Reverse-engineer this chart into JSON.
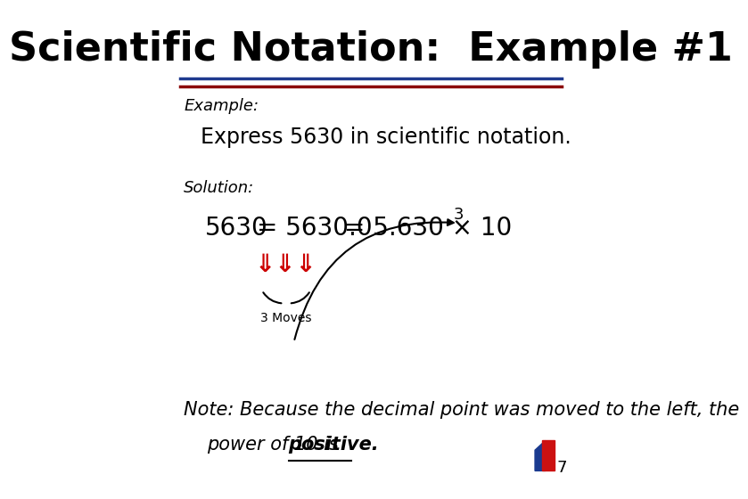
{
  "title": "Scientific Notation:  Example #1",
  "bg_color": "#ffffff",
  "title_color": "#000000",
  "title_fontsize": 32,
  "line1_color": "#1f3a8f",
  "line2_color": "#8b0000",
  "example_label": "Example:",
  "example_text": "Express 5630 in scientific notation.",
  "solution_label": "Solution:",
  "eq_left": "5630",
  "eq_mid": "= 5630.0",
  "eq_right": "= 5.630 × 10",
  "eq_exp": "3",
  "arrows_color": "#cc0000",
  "moves_label": "3 Moves",
  "note_text1": "Note: Because the decimal point was moved to the left, the",
  "note_text2": "power of 10 is ",
  "note_bold": "positive",
  "note_fontsize": 15,
  "page_num": "7"
}
